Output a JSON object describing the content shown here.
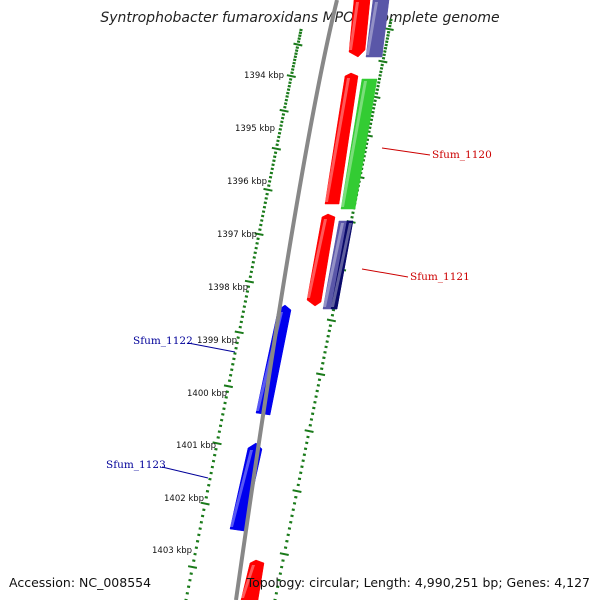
{
  "title": "Syntrophobacter fumaroxidans MPOB, complete genome",
  "footer": {
    "accession": "Accession: NC_008554",
    "summary": "Topology: circular; Length: 4,990,251 bp; Genes: 4,127"
  },
  "colors": {
    "backbone": "#888888",
    "tick": "#1a7a1a",
    "red_gene": "#ff0000",
    "green_gene": "#33cc33",
    "blue_gene": "#0000ee",
    "purple_gene": "#5a57a8",
    "navy_gene": "#0a0a6a",
    "forward_label": "#cc0000",
    "reverse_label": "#000099"
  },
  "scale": {
    "unit": "kbp",
    "ticks": [
      {
        "kbp": 1394,
        "label": "1394 kbp"
      },
      {
        "kbp": 1395,
        "label": "1395 kbp"
      },
      {
        "kbp": 1396,
        "label": "1396 kbp"
      },
      {
        "kbp": 1397,
        "label": "1397 kbp"
      },
      {
        "kbp": 1398,
        "label": "1398 kbp"
      },
      {
        "kbp": 1399,
        "label": "1399 kbp"
      },
      {
        "kbp": 1400,
        "label": "1400 kbp"
      },
      {
        "kbp": 1401,
        "label": "1401 kbp"
      },
      {
        "kbp": 1402,
        "label": "1402 kbp"
      },
      {
        "kbp": 1403,
        "label": "1403 kbp"
      }
    ]
  },
  "gene_labels": [
    {
      "text": "Sfum_1120",
      "strand": "forward"
    },
    {
      "text": "Sfum_1121",
      "strand": "forward"
    },
    {
      "text": "Sfum_1122",
      "strand": "reverse"
    },
    {
      "text": "Sfum_1123",
      "strand": "reverse"
    }
  ]
}
